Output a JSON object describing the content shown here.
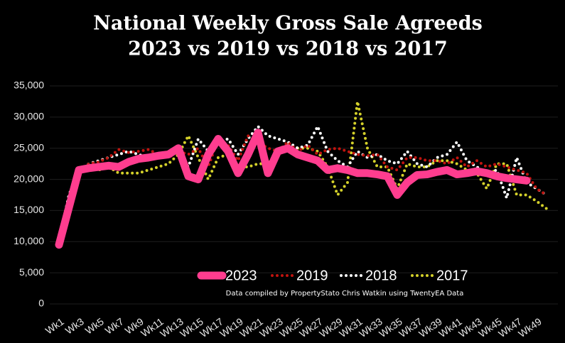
{
  "chart_data": {
    "type": "line",
    "title": "National Weekly Gross Sale Agreeds",
    "subtitle": "2023 vs 2019 vs 2018 vs 2017",
    "note": "Data compiled by PropertyStato Chris Watkin using TwentyEA Data",
    "categories": [
      "Wk1",
      null,
      "Wk3",
      null,
      "Wk5",
      null,
      "Wk7",
      null,
      "Wk9",
      null,
      "Wk11",
      null,
      "Wk13",
      null,
      "Wk15",
      null,
      "Wk17",
      null,
      "Wk19",
      null,
      "Wk21",
      null,
      "Wk23",
      null,
      "Wk25",
      null,
      "Wk27",
      null,
      "Wk29",
      null,
      "Wk31",
      null,
      "Wk33",
      null,
      "Wk35",
      null,
      "Wk37",
      null,
      "Wk39",
      null,
      "Wk41",
      null,
      "Wk43",
      null,
      "Wk45",
      null,
      "Wk47",
      null,
      "Wk49",
      null
    ],
    "series": [
      {
        "name": "2023",
        "color": "#ff3d8f",
        "line_style": "solid",
        "values": [
          9500,
          15500,
          21500,
          21800,
          22000,
          22200,
          22000,
          22800,
          23300,
          23500,
          23800,
          24000,
          25000,
          20500,
          20000,
          24000,
          26500,
          24500,
          21000,
          24000,
          27500,
          21000,
          24500,
          25000,
          24000,
          23500,
          23000,
          21500,
          21800,
          21500,
          21000,
          21000,
          20800,
          20500,
          17500,
          19500,
          20700,
          20800,
          21200,
          21500,
          20800,
          21000,
          21300,
          21000,
          20500,
          20200,
          20000,
          19800,
          null,
          null
        ]
      },
      {
        "name": "2019",
        "color": "#c0140f",
        "line_style": "dotted",
        "values": [
          10000,
          17000,
          21000,
          22500,
          22800,
          23500,
          24800,
          24300,
          24500,
          24800,
          24000,
          23500,
          24500,
          24000,
          25000,
          22000,
          26500,
          25500,
          23000,
          27000,
          26000,
          25000,
          24500,
          26000,
          24500,
          25500,
          24000,
          24800,
          25000,
          24500,
          24000,
          23800,
          24000,
          22000,
          21500,
          23500,
          23500,
          23000,
          23000,
          22500,
          23500,
          22000,
          23000,
          22000,
          22500,
          22000,
          21500,
          21000,
          18500,
          17500
        ]
      },
      {
        "name": "2018",
        "color": "#ffffff",
        "line_style": "dotted",
        "values": [
          10200,
          17500,
          21500,
          22500,
          23000,
          23500,
          24000,
          24500,
          24000,
          23500,
          24000,
          24500,
          24000,
          22000,
          26500,
          24500,
          26000,
          26500,
          24000,
          26500,
          28500,
          27000,
          26500,
          26000,
          25000,
          25500,
          28500,
          24500,
          23000,
          22000,
          24500,
          23500,
          24000,
          23000,
          22500,
          24500,
          22500,
          22000,
          23500,
          24000,
          26000,
          23000,
          22000,
          21000,
          21500,
          17000,
          23500,
          19500,
          18500,
          17500
        ]
      },
      {
        "name": "2017",
        "color": "#d4d12a",
        "line_style": "dotted",
        "values": [
          10000,
          16000,
          21000,
          22000,
          21500,
          22000,
          21000,
          21000,
          21000,
          21500,
          22000,
          22500,
          24000,
          27000,
          23500,
          20000,
          23500,
          24000,
          22000,
          22000,
          22500,
          22500,
          24000,
          25500,
          25000,
          25000,
          24500,
          22000,
          17500,
          19500,
          32500,
          25000,
          22000,
          22000,
          18500,
          22500,
          22000,
          22000,
          23000,
          23000,
          22500,
          21500,
          21000,
          18500,
          22500,
          22500,
          17500,
          17500,
          16500,
          15300
        ]
      }
    ],
    "ylim": [
      0,
      35000
    ],
    "yticks": [
      0,
      {
        "value": 5000,
        "label": "5,000"
      },
      {
        "value": 10000,
        "label": "10,000"
      },
      {
        "value": 15000,
        "label": "15,000"
      },
      {
        "value": 20000,
        "label": "20,000"
      },
      {
        "value": 25000,
        "label": "25,000"
      },
      {
        "value": 30000,
        "label": "30,000"
      },
      {
        "value": 35000,
        "label": "35,000"
      }
    ],
    "grid": true,
    "legend": "bottom"
  }
}
